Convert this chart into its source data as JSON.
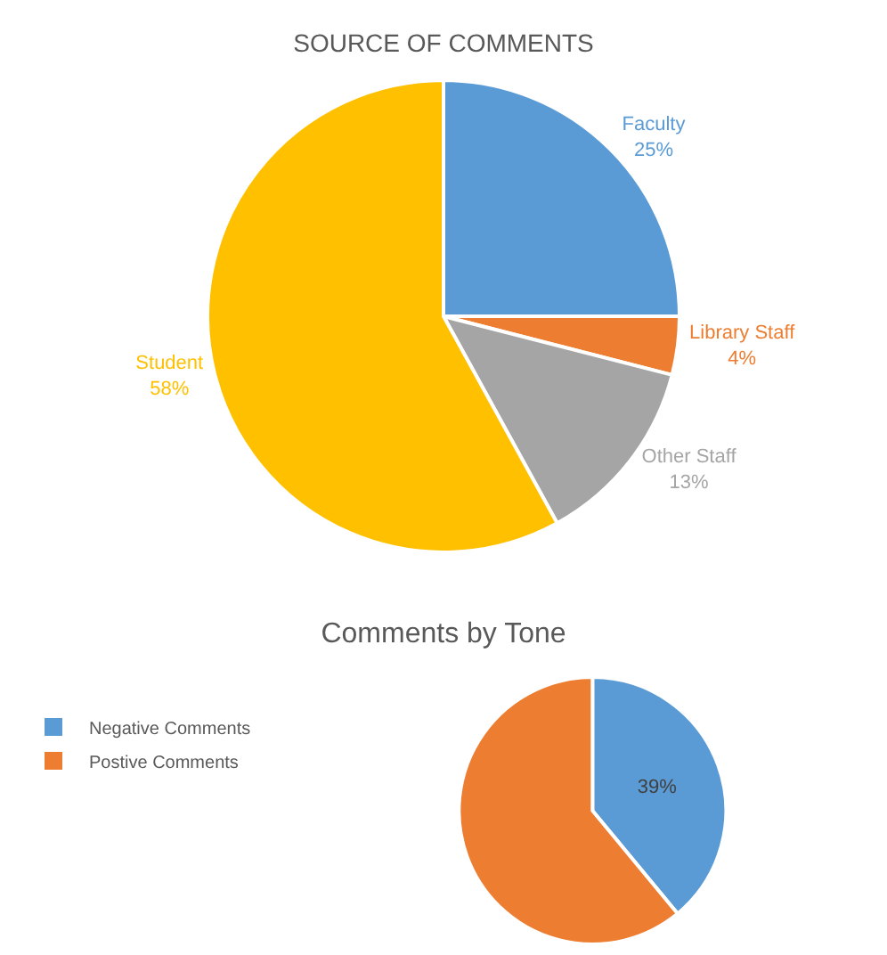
{
  "chart_data": [
    {
      "type": "pie",
      "title": "SOURCE OF COMMENTS",
      "categories": [
        "Faculty",
        "Library Staff",
        "Other Staff",
        "Student"
      ],
      "values": [
        25,
        4,
        13,
        58
      ],
      "colors": [
        "#5b9bd5",
        "#ed7d31",
        "#a5a5a5",
        "#ffc000"
      ],
      "value_labels": [
        "25%",
        "4%",
        "13%",
        "58%"
      ],
      "legend": false
    },
    {
      "type": "pie",
      "title": "Comments by Tone",
      "categories": [
        "Negative Comments",
        "Postive Comments"
      ],
      "values": [
        39,
        61
      ],
      "colors": [
        "#5b9bd5",
        "#ed7d31"
      ],
      "value_labels": [
        "39%",
        null
      ],
      "legend": "left"
    }
  ]
}
